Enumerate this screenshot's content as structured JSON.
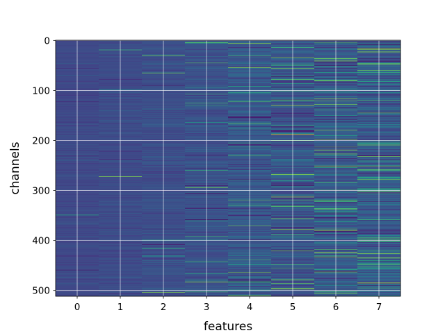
{
  "chart_data": {
    "type": "heatmap",
    "title": "",
    "xlabel": "features",
    "ylabel": "channels",
    "x_categories": [
      "0",
      "1",
      "2",
      "3",
      "4",
      "5",
      "6",
      "7"
    ],
    "y_ticks": [
      "0",
      "100",
      "200",
      "300",
      "400",
      "500"
    ],
    "y_tick_values": [
      0,
      100,
      200,
      300,
      400,
      500
    ],
    "x_tick_values": [
      0,
      1,
      2,
      3,
      4,
      5,
      6,
      7
    ],
    "rows": 512,
    "columns": 8,
    "ylim": [
      511.5,
      -0.5
    ],
    "xlim": [
      -0.5,
      7.5
    ],
    "colormap": "viridis",
    "grid": true,
    "colors": {
      "background": "#ffffff",
      "grid": "#ffffff",
      "axis": "#000000",
      "low": "#3b3f8f",
      "high": "#b5de2b"
    },
    "column_profiles": [
      {
        "feature": 0,
        "mean": 0.22,
        "spread": 0.04,
        "bright_rate": 0.004
      },
      {
        "feature": 1,
        "mean": 0.23,
        "spread": 0.05,
        "bright_rate": 0.006
      },
      {
        "feature": 2,
        "mean": 0.24,
        "spread": 0.06,
        "bright_rate": 0.012
      },
      {
        "feature": 3,
        "mean": 0.25,
        "spread": 0.07,
        "bright_rate": 0.03
      },
      {
        "feature": 4,
        "mean": 0.27,
        "spread": 0.1,
        "bright_rate": 0.06
      },
      {
        "feature": 5,
        "mean": 0.26,
        "spread": 0.12,
        "bright_rate": 0.07
      },
      {
        "feature": 6,
        "mean": 0.28,
        "spread": 0.12,
        "bright_rate": 0.08
      },
      {
        "feature": 7,
        "mean": 0.3,
        "spread": 0.12,
        "bright_rate": 0.1
      }
    ],
    "bright_channels": [
      {
        "feature": 3,
        "channel": 5,
        "value": 0.62
      },
      {
        "feature": 5,
        "channel": 188,
        "value": 0.95
      },
      {
        "feature": 4,
        "channel": 230,
        "value": 0.7
      },
      {
        "feature": 6,
        "channel": 425,
        "value": 0.95
      },
      {
        "feature": 7,
        "channel": 435,
        "value": 0.85
      },
      {
        "feature": 7,
        "channel": 485,
        "value": 0.9
      },
      {
        "feature": 4,
        "channel": 510,
        "value": 0.8
      },
      {
        "feature": 7,
        "channel": 48,
        "value": 0.8
      },
      {
        "feature": 5,
        "channel": 130,
        "value": 0.85
      },
      {
        "feature": 7,
        "channel": 145,
        "value": 0.75
      }
    ],
    "dark_channels": [
      {
        "feature": 5,
        "channel": 72,
        "value": 0.02
      },
      {
        "feature": 5,
        "channel": 375,
        "value": 0.02
      },
      {
        "feature": 6,
        "channel": 325,
        "value": 0.05
      },
      {
        "feature": 4,
        "channel": 478,
        "value": 0.04
      }
    ]
  }
}
